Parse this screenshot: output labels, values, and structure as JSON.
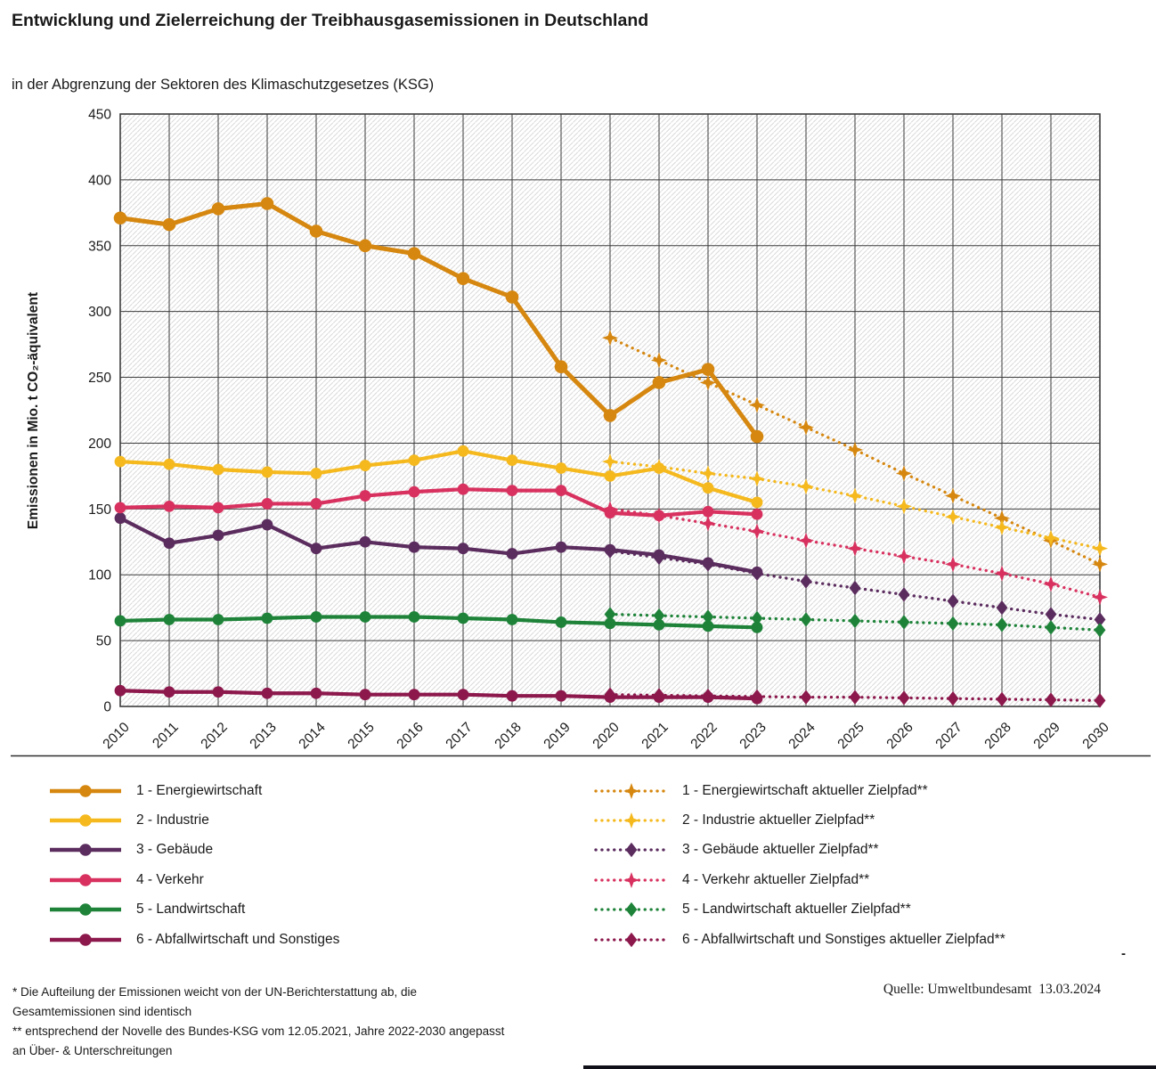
{
  "title": "Entwicklung und Zielerreichung der Treibhausgasemissionen in Deutschland",
  "subtitle": "in der Abgrenzung der Sektoren des Klimaschutzgesetzes (KSG)",
  "source": "Quelle: Umweltbundesamt  13.03.2024",
  "stray_dash": "-",
  "footnote_lines": [
    "* Die Aufteilung der Emissionen weicht von der UN-Berichterstattung ab, die",
    "Gesamtemissionen sind identisch",
    "** entsprechend der Novelle des Bundes-KSG vom 12.05.2021, Jahre 2022-2030 angepasst",
    "an Über- & Unterschreitungen"
  ],
  "chart_data": {
    "type": "line",
    "title": "Entwicklung und Zielerreichung der Treibhausgasemissionen in Deutschland",
    "subtitle": "in der Abgrenzung der Sektoren des Klimaschutzgesetzes (KSG)",
    "xlabel": "",
    "ylabel": "Emissionen in Mio. t CO₂-äquivalent",
    "ylim": [
      0,
      450
    ],
    "ytick_step": 50,
    "grid": "both",
    "plot_background": "diagonal-hatch",
    "legend_position": "bottom-two-columns",
    "x": [
      2010,
      2011,
      2012,
      2013,
      2014,
      2015,
      2016,
      2017,
      2018,
      2019,
      2020,
      2021,
      2022,
      2023,
      2024,
      2025,
      2026,
      2027,
      2028,
      2029,
      2030
    ],
    "series": [
      {
        "name": "1 - Energiewirtschaft",
        "color": "#D6870F",
        "style": "solid",
        "marker": "circle",
        "x_start": 2010,
        "values": [
          371,
          366,
          378,
          382,
          361,
          350,
          344,
          325,
          311,
          258,
          221,
          246,
          256,
          205
        ]
      },
      {
        "name": "2 - Industrie",
        "color": "#F5B91E",
        "style": "solid",
        "marker": "circle",
        "x_start": 2010,
        "values": [
          186,
          184,
          180,
          178,
          177,
          183,
          187,
          194,
          187,
          181,
          175,
          181,
          166,
          155
        ]
      },
      {
        "name": "3 - Gebäude",
        "color": "#5B2C5E",
        "style": "solid",
        "marker": "circle",
        "x_start": 2010,
        "values": [
          143,
          124,
          130,
          138,
          120,
          125,
          121,
          120,
          116,
          121,
          119,
          115,
          109,
          102
        ]
      },
      {
        "name": "4 - Verkehr",
        "color": "#D8315F",
        "style": "solid",
        "marker": "circle",
        "x_start": 2010,
        "values": [
          151,
          152,
          151,
          154,
          154,
          160,
          163,
          165,
          164,
          164,
          147,
          145,
          148,
          146
        ]
      },
      {
        "name": "5 - Landwirtschaft",
        "color": "#1E8339",
        "style": "solid",
        "marker": "circle",
        "x_start": 2010,
        "values": [
          65,
          66,
          66,
          67,
          68,
          68,
          68,
          67,
          66,
          64,
          63,
          62,
          61,
          60
        ]
      },
      {
        "name": "6 - Abfallwirtschaft und Sonstiges",
        "color": "#8C184C",
        "style": "solid",
        "marker": "circle",
        "x_start": 2010,
        "values": [
          12,
          11,
          11,
          10,
          10,
          9,
          9,
          9,
          8,
          8,
          7,
          7,
          7,
          6
        ]
      },
      {
        "name": "1 - Energiewirtschaft aktueller Zielpfad**",
        "color": "#D6870F",
        "style": "dotted",
        "marker": "star4",
        "x_start": 2020,
        "values": [
          280,
          263,
          246,
          229,
          212,
          195,
          177,
          160,
          143,
          126,
          108
        ]
      },
      {
        "name": "2 - Industrie aktueller Zielpfad**",
        "color": "#F5B91E",
        "style": "dotted",
        "marker": "star4",
        "x_start": 2020,
        "values": [
          186,
          182,
          177,
          173,
          167,
          160,
          152,
          144,
          136,
          128,
          120
        ]
      },
      {
        "name": "3 - Gebäude aktueller Zielpfad**",
        "color": "#5B2C5E",
        "style": "dotted",
        "marker": "diamond",
        "x_start": 2020,
        "values": [
          118,
          113,
          108,
          101,
          95,
          90,
          85,
          80,
          75,
          70,
          66
        ]
      },
      {
        "name": "4 - Verkehr aktueller Zielpfad**",
        "color": "#D8315F",
        "style": "dotted",
        "marker": "star4",
        "x_start": 2020,
        "values": [
          150,
          145,
          139,
          133,
          126,
          120,
          114,
          108,
          101,
          93,
          83
        ]
      },
      {
        "name": "5 - Landwirtschaft aktueller Zielpfad**",
        "color": "#1E8339",
        "style": "dotted",
        "marker": "diamond",
        "x_start": 2020,
        "values": [
          70,
          69,
          68,
          67,
          66,
          65,
          64,
          63,
          62,
          60,
          58
        ]
      },
      {
        "name": "6 - Abfallwirtschaft und Sonstiges aktueller Zielpfad**",
        "color": "#8C184C",
        "style": "dotted",
        "marker": "diamond",
        "x_start": 2020,
        "values": [
          9,
          8.5,
          8,
          7.5,
          7,
          7,
          6.5,
          6,
          5.5,
          5,
          4.5
        ]
      }
    ]
  }
}
